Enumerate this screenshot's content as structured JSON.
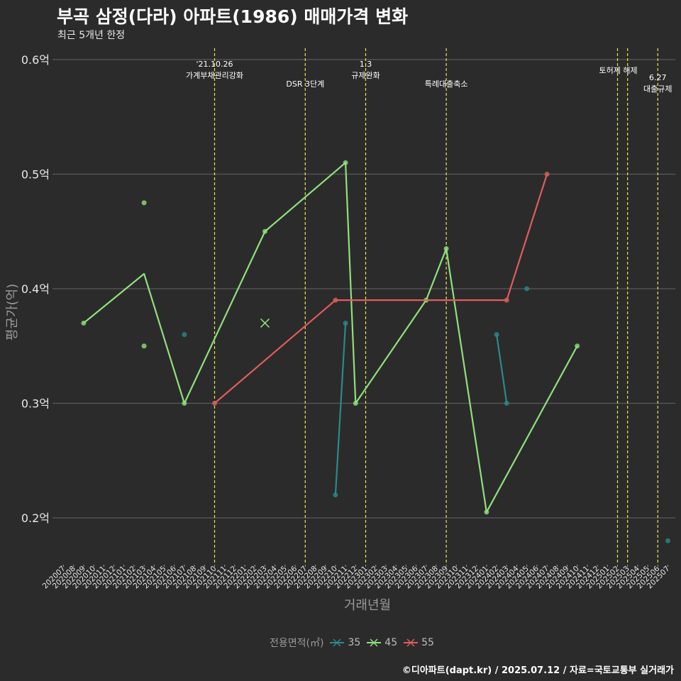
{
  "title": "부곡 삼정(다라) 아파트(1986) 매매가격 변화",
  "subtitle": "최근 5개년 한정",
  "caption": "©디아파트(dapt.kr) / 2025.07.12 / 자료=국토교통부 실거래가",
  "colors": {
    "background": "#2b2b2c",
    "grid": "#5a5a5a",
    "event_line": "#e8e84a",
    "axis_text": "#e8e8e8",
    "label_text": "#9a9a9a"
  },
  "chart_data": {
    "type": "line",
    "xlabel": "거래년월",
    "ylabel": "평균가(억)",
    "ylim": [
      0.16,
      0.61
    ],
    "y_ticks": [
      0.2,
      0.3,
      0.4,
      0.5,
      0.6
    ],
    "y_tick_labels": [
      "0.2억",
      "0.3억",
      "0.4억",
      "0.5억",
      "0.6억"
    ],
    "categories": [
      "202007",
      "202008",
      "202009",
      "202010",
      "202011",
      "202012",
      "202101",
      "202102",
      "202103",
      "202104",
      "202105",
      "202106",
      "202107",
      "202108",
      "202109",
      "202110",
      "202111",
      "202112",
      "202201",
      "202202",
      "202203",
      "202204",
      "202205",
      "202206",
      "202207",
      "202208",
      "202209",
      "202210",
      "202211",
      "202212",
      "202301",
      "202302",
      "202303",
      "202304",
      "202305",
      "202306",
      "202307",
      "202308",
      "202309",
      "202310",
      "202311",
      "202312",
      "202401",
      "202402",
      "202403",
      "202404",
      "202405",
      "202406",
      "202407",
      "202408",
      "202409",
      "202410",
      "202411",
      "202412",
      "202501",
      "202502",
      "202503",
      "202504",
      "202505",
      "202506",
      "202507"
    ],
    "legend_title": "전용면적(㎡)",
    "series": [
      {
        "name": "35",
        "color": "#2a8a8a",
        "lines": [
          [
            [
              "202210",
              0.22
            ],
            [
              "202211",
              0.37
            ]
          ],
          [
            [
              "202402",
              0.36
            ],
            [
              "202403",
              0.3
            ]
          ]
        ],
        "points": [
          [
            "202107",
            0.36
          ],
          [
            "202210",
            0.22
          ],
          [
            "202211",
            0.37
          ],
          [
            "202402",
            0.36
          ],
          [
            "202403",
            0.3
          ],
          [
            "202405",
            0.4
          ],
          [
            "202507",
            0.18
          ]
        ]
      },
      {
        "name": "45",
        "color": "#90e07a",
        "lines": [
          [
            [
              "202009",
              0.37
            ],
            [
              "202103",
              0.413
            ],
            [
              "202107",
              0.3
            ],
            [
              "202203",
              0.45
            ],
            [
              "202211",
              0.51
            ],
            [
              "202212",
              0.3
            ],
            [
              "202307",
              0.39
            ],
            [
              "202309",
              0.435
            ],
            [
              "202401",
              0.205
            ],
            [
              "202410",
              0.35
            ]
          ]
        ],
        "points": [
          [
            "202009",
            0.37
          ],
          [
            "202103",
            0.475
          ],
          [
            "202103",
            0.35
          ],
          [
            "202107",
            0.3
          ],
          [
            "202203",
            0.45
          ],
          [
            "202211",
            0.51
          ],
          [
            "202212",
            0.3
          ],
          [
            "202307",
            0.39
          ],
          [
            "202309",
            0.435
          ],
          [
            "202401",
            0.205
          ],
          [
            "202410",
            0.35
          ]
        ],
        "cross_points": [
          [
            "202203",
            0.37
          ]
        ]
      },
      {
        "name": "55",
        "color": "#e05c5c",
        "lines": [
          [
            [
              "202110",
              0.3
            ],
            [
              "202210",
              0.39
            ],
            [
              "202403",
              0.39
            ],
            [
              "202407",
              0.5
            ]
          ]
        ],
        "points": [
          [
            "202110",
            0.3
          ],
          [
            "202210",
            0.39
          ],
          [
            "202403",
            0.39
          ],
          [
            "202407",
            0.5
          ]
        ]
      }
    ],
    "events": [
      {
        "month": "202110",
        "offset": 0,
        "lines": [
          "'21.10.26",
          "가계부채관리강화"
        ],
        "row": 0
      },
      {
        "month": "202207",
        "offset": 0,
        "lines": [
          "DSR 3단계"
        ],
        "row": 2
      },
      {
        "month": "202301",
        "offset": 0,
        "lines": [
          "1.3",
          "규제완화"
        ],
        "row": 0
      },
      {
        "month": "202309",
        "offset": 0,
        "lines": [
          "특례대출축소"
        ],
        "row": 2
      },
      {
        "month": "202502",
        "offset": 0,
        "lines": [],
        "row": 1
      },
      {
        "month": "202503",
        "offset": 0,
        "lines": [
          "토허제 해제"
        ],
        "row": 1,
        "anchor_between": [
          "202502",
          "202503"
        ]
      },
      {
        "month": "202506",
        "offset": 0,
        "lines": [
          "6.27",
          "대출규제"
        ],
        "row": 3
      }
    ]
  }
}
